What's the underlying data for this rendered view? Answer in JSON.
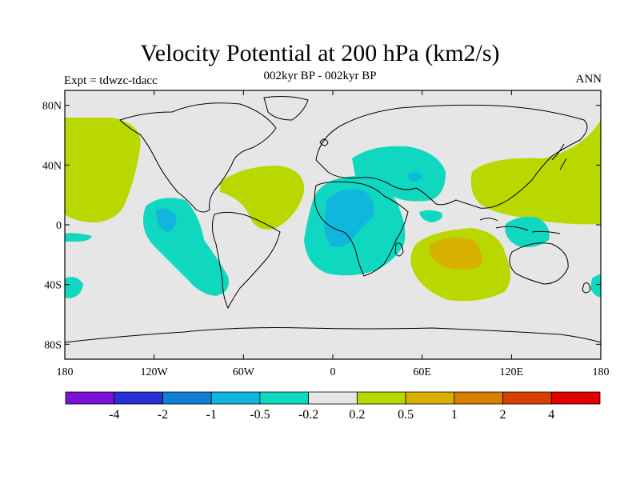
{
  "title": "Velocity Potential at 200 hPa (km2/s)",
  "subtitle": "002kyr BP - 002kyr BP",
  "left_label": "Expt = tdwzc-tdacc",
  "right_label": "ANN",
  "lat_ticks": [
    {
      "label": "80N",
      "value": 80
    },
    {
      "label": "40N",
      "value": 40
    },
    {
      "label": "0",
      "value": 0
    },
    {
      "label": "40S",
      "value": -40
    },
    {
      "label": "80S",
      "value": -80
    }
  ],
  "lon_ticks": [
    {
      "label": "180",
      "value": -180
    },
    {
      "label": "120W",
      "value": -120
    },
    {
      "label": "60W",
      "value": -60
    },
    {
      "label": "0",
      "value": 0
    },
    {
      "label": "60E",
      "value": 60
    },
    {
      "label": "120E",
      "value": 120
    },
    {
      "label": "180",
      "value": 180
    }
  ],
  "colorbar": {
    "colors": [
      "#7b12d6",
      "#2a2ed6",
      "#1180d4",
      "#10b6dc",
      "#10d8c0",
      "#e6e6e6",
      "#b8d800",
      "#d8b000",
      "#d88000",
      "#d84000",
      "#e00000"
    ],
    "labels": [
      "-4",
      "-2",
      "-1",
      "-0.5",
      "-0.2",
      "0.2",
      "0.5",
      "1",
      "2",
      "4"
    ]
  },
  "background_color": "#e6e6e6"
}
